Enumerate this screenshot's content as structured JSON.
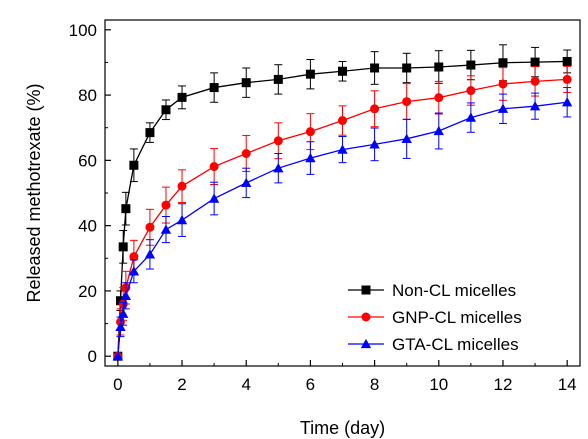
{
  "chart_data": {
    "type": "line",
    "title": "",
    "xlabel": "Time (day)",
    "ylabel": "Released methotrexate (%)",
    "xlim": [
      -0.4,
      14.4
    ],
    "ylim": [
      -3,
      103
    ],
    "xticks": [
      0,
      2,
      4,
      6,
      8,
      10,
      12,
      14
    ],
    "yticks": [
      0,
      20,
      40,
      60,
      80,
      100
    ],
    "grid": false,
    "legend_position": "bottom-right",
    "error_bars": true,
    "series": [
      {
        "name": "Non-CL micelles",
        "color": "#000000",
        "marker": "square",
        "x": [
          0,
          0.083,
          0.167,
          0.25,
          0.5,
          1,
          1.5,
          2,
          3,
          4,
          5,
          6,
          7,
          8,
          9,
          10,
          11,
          12,
          13,
          14
        ],
        "y": [
          0,
          17,
          33.5,
          45.2,
          58.5,
          68.5,
          75.5,
          79.3,
          82.3,
          83.8,
          84.8,
          86.4,
          87.3,
          88.3,
          88.3,
          88.6,
          89.2,
          89.9,
          90.1,
          90.3
        ],
        "err": [
          0,
          3,
          5,
          5,
          5,
          3,
          3,
          3.5,
          4.5,
          4.5,
          4.5,
          4.5,
          3,
          5,
          4.5,
          5,
          4.5,
          5.5,
          4.5,
          3.5
        ]
      },
      {
        "name": "GNP-CL micelles",
        "color": "#ff0000",
        "marker": "circle",
        "x": [
          0,
          0.083,
          0.167,
          0.25,
          0.5,
          1,
          1.5,
          2,
          3,
          4,
          5,
          6,
          7,
          8,
          9,
          10,
          11,
          12,
          13,
          14
        ],
        "y": [
          0,
          10.5,
          16,
          21,
          30.5,
          39.5,
          46.3,
          52.1,
          58.1,
          62.1,
          66,
          68.8,
          72.2,
          75.8,
          78,
          79.2,
          81.4,
          83.4,
          84.2,
          84.8
        ],
        "err": [
          0,
          4,
          5,
          5,
          5,
          5.5,
          5.5,
          5,
          5.5,
          5.5,
          5.5,
          5.5,
          4.5,
          5.5,
          5.5,
          5,
          4.5,
          5,
          4.5,
          4
        ]
      },
      {
        "name": "GTA-CL micelles",
        "color": "#0000ff",
        "marker": "triangle",
        "x": [
          0,
          0.083,
          0.167,
          0.25,
          0.5,
          1,
          1.5,
          2,
          3,
          4,
          5,
          6,
          7,
          8,
          9,
          10,
          11,
          12,
          13,
          14
        ],
        "y": [
          0,
          9,
          13,
          18.5,
          26,
          31.2,
          38.8,
          41.7,
          48.3,
          53.1,
          57.6,
          60.7,
          63.3,
          64.9,
          66.6,
          69,
          73.1,
          75.8,
          76.6,
          77.8
        ],
        "err": [
          0,
          3,
          3.5,
          4,
          3.5,
          4.5,
          4,
          5,
          5,
          4.5,
          4.5,
          5,
          4,
          5,
          6,
          5.5,
          4.5,
          4.5,
          4,
          4.5
        ]
      }
    ]
  }
}
